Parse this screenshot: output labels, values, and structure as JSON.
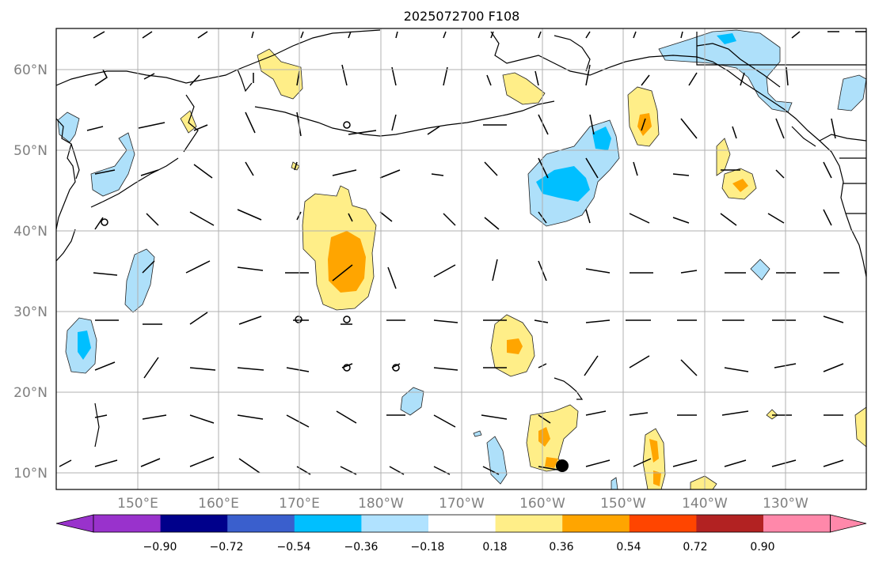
{
  "title": "2025072700 F108",
  "lat_labels": [
    "60°N",
    "50°N",
    "40°N",
    "30°N",
    "20°N",
    "10°N"
  ],
  "lon_labels": [
    "150°E",
    "160°E",
    "170°E",
    "180°W",
    "170°W",
    "160°W",
    "150°W",
    "140°W",
    "130°W"
  ],
  "colorbar": {
    "colors": [
      "#9932cc",
      "#00008b",
      "#3a5fcd",
      "#00bfff",
      "#b0e2ff",
      "#ffffff",
      "#ffee88",
      "#ffa500",
      "#ff4500",
      "#b22222",
      "#ff88aa"
    ],
    "tick_labels": [
      "−0.90",
      "−0.72",
      "−0.54",
      "−0.36",
      "−0.18",
      "0.18",
      "0.36",
      "0.54",
      "0.72",
      "0.90"
    ]
  }
}
